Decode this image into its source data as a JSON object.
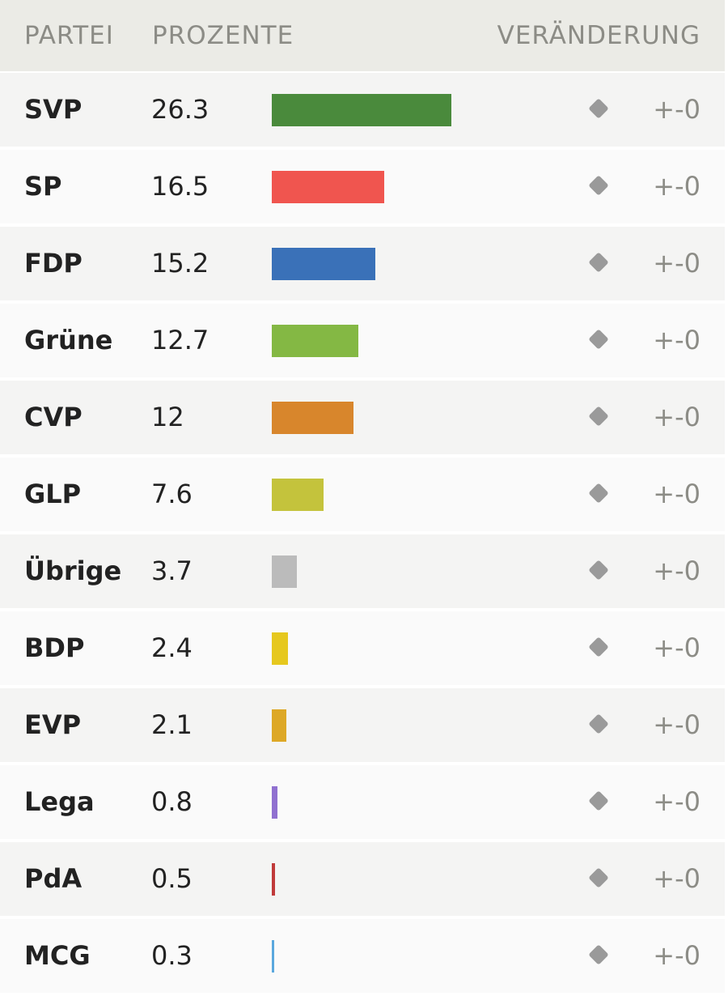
{
  "header": {
    "party": "PARTEI",
    "percent": "PROZENTE",
    "change": "VERÄNDERUNG"
  },
  "chart_data": {
    "type": "bar",
    "categories": [
      "SVP",
      "SP",
      "FDP",
      "Grüne",
      "CVP",
      "GLP",
      "Übrige",
      "BDP",
      "EVP",
      "Lega",
      "PdA",
      "MCG"
    ],
    "values": [
      26.3,
      16.5,
      15.2,
      12.7,
      12,
      7.6,
      3.7,
      2.4,
      2.1,
      0.8,
      0.5,
      0.3
    ],
    "value_labels": [
      "26.3",
      "16.5",
      "15.2",
      "12.7",
      "12",
      "7.6",
      "3.7",
      "2.4",
      "2.1",
      "0.8",
      "0.5",
      "0.3"
    ],
    "colors": [
      "#4a8a3c",
      "#f0554f",
      "#3a71b8",
      "#84b844",
      "#d8862c",
      "#c4c33c",
      "#bbbbbb",
      "#e6c81e",
      "#dda826",
      "#9070d0",
      "#c03a3a",
      "#5aa8de"
    ],
    "change_labels": [
      "+-0",
      "+-0",
      "+-0",
      "+-0",
      "+-0",
      "+-0",
      "+-0",
      "+-0",
      "+-0",
      "+-0",
      "+-0",
      "+-0"
    ],
    "change_icon": "diamond-icon"
  }
}
